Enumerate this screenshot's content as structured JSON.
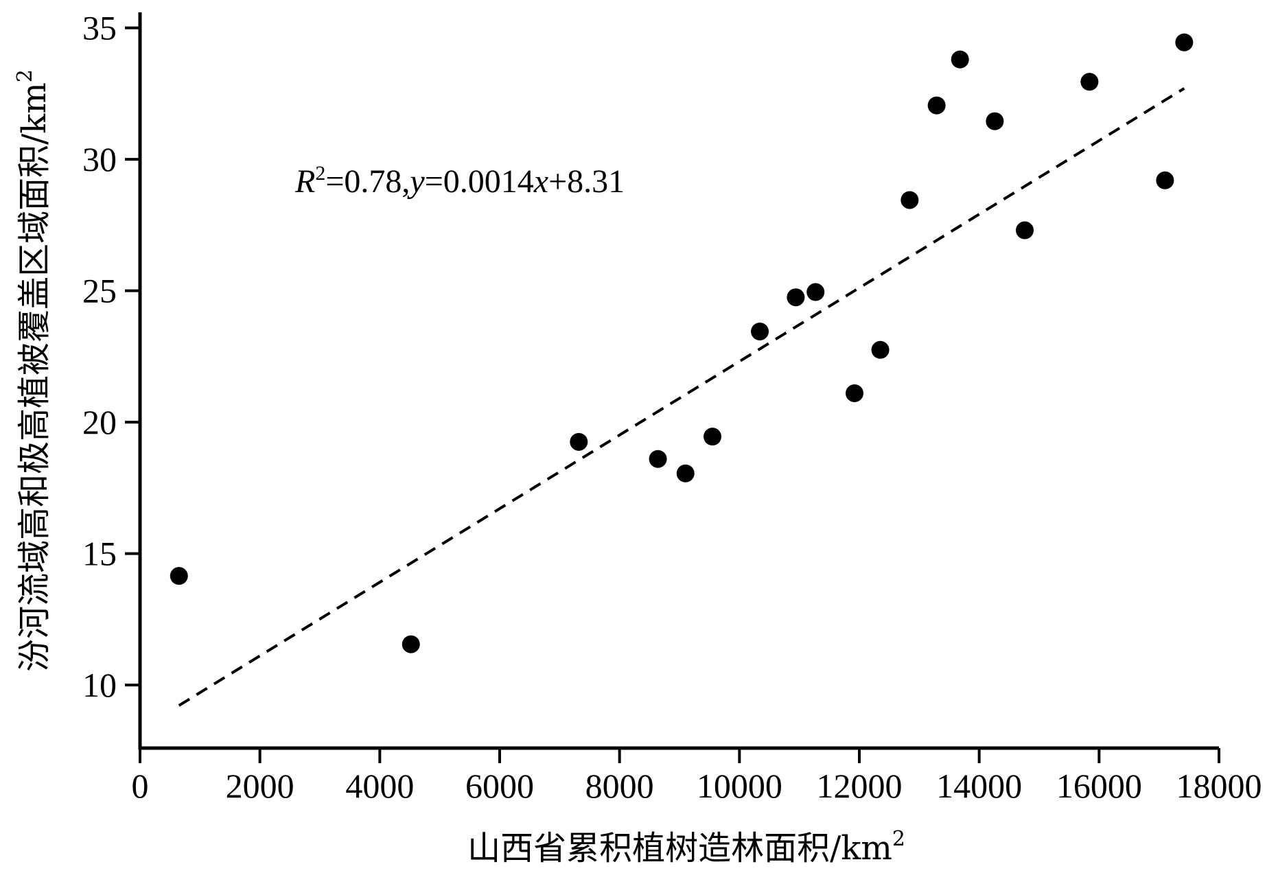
{
  "chart_data": {
    "type": "scatter",
    "title": "",
    "xlabel": "山西省累积植树造林面积/km",
    "xlabel_sup": "2",
    "ylabel": "汾河流域高和极高植被覆盖区域面积/km",
    "ylabel_sup": "2",
    "xlim": [
      0,
      18000
    ],
    "ylim": [
      7.6,
      35.8
    ],
    "xticks": [
      0,
      2000,
      4000,
      6000,
      8000,
      10000,
      12000,
      14000,
      16000,
      18000
    ],
    "yticks": [
      10,
      15,
      20,
      25,
      30,
      35
    ],
    "grid": false,
    "points": [
      {
        "x": 650,
        "y": 14.15
      },
      {
        "x": 4520,
        "y": 11.55
      },
      {
        "x": 7320,
        "y": 19.25
      },
      {
        "x": 8640,
        "y": 18.6
      },
      {
        "x": 9100,
        "y": 18.05
      },
      {
        "x": 9550,
        "y": 19.45
      },
      {
        "x": 10340,
        "y": 23.45
      },
      {
        "x": 10940,
        "y": 24.75
      },
      {
        "x": 11270,
        "y": 24.95
      },
      {
        "x": 11920,
        "y": 21.1
      },
      {
        "x": 12350,
        "y": 22.75
      },
      {
        "x": 12840,
        "y": 28.45
      },
      {
        "x": 13290,
        "y": 32.05
      },
      {
        "x": 13680,
        "y": 33.8
      },
      {
        "x": 14260,
        "y": 31.45
      },
      {
        "x": 14760,
        "y": 27.3
      },
      {
        "x": 15840,
        "y": 32.95
      },
      {
        "x": 17100,
        "y": 29.2
      },
      {
        "x": 17420,
        "y": 34.45
      }
    ],
    "trendline": {
      "slope": 0.0014,
      "intercept": 8.31,
      "x_range": [
        650,
        17420
      ],
      "style": "dashed"
    },
    "annotation": {
      "r_label": "R",
      "r_sup": "2",
      "eq_value": "=0.78,",
      "y_var": "y",
      "eq_mid": "=0.0014",
      "x_var": "x",
      "eq_end": "+8.31"
    }
  }
}
